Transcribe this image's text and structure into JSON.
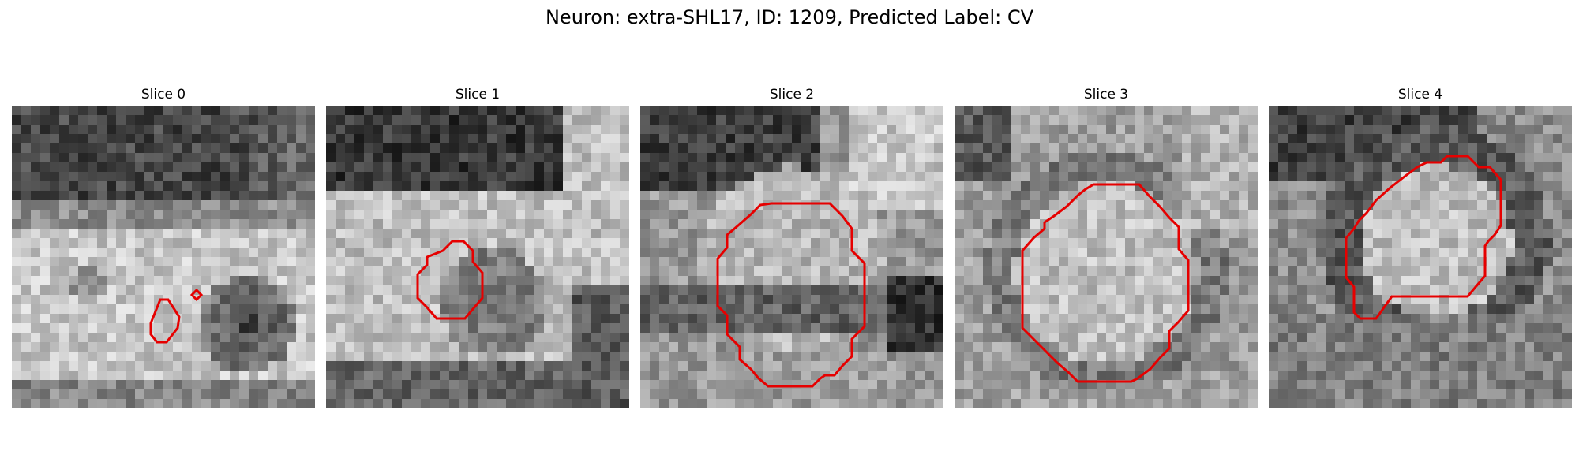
{
  "figure": {
    "title": "Neuron: extra-SHL17, ID: 1209, Predicted Label: CV",
    "contour_color": "#e60000"
  },
  "slices": [
    {
      "title": "Slice 0"
    },
    {
      "title": "Slice 1"
    },
    {
      "title": "Slice 2"
    },
    {
      "title": "Slice 3"
    },
    {
      "title": "Slice 4"
    }
  ]
}
